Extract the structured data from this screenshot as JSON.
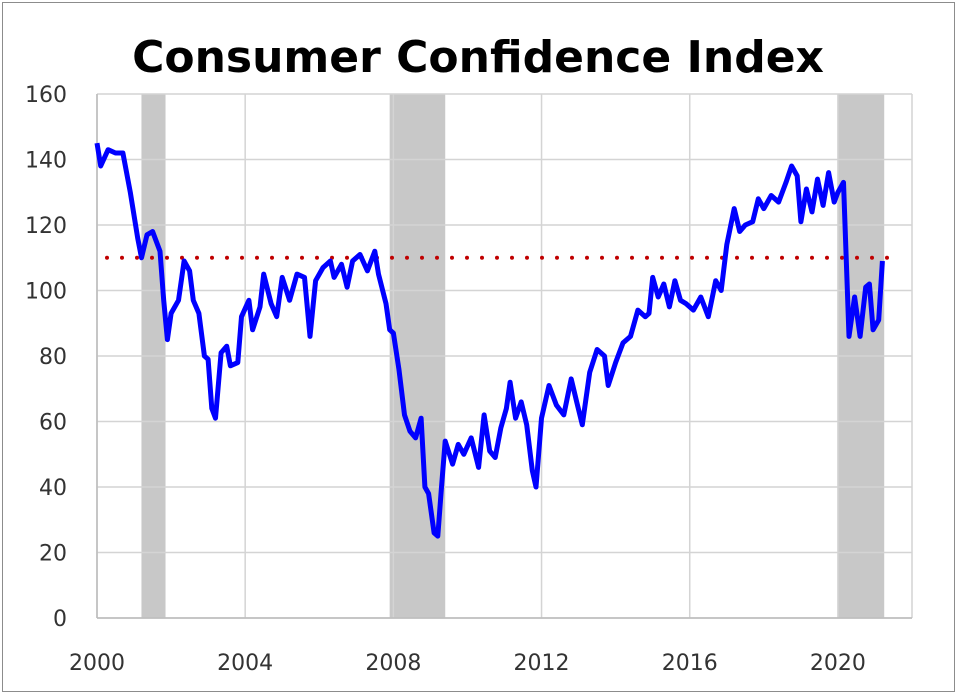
{
  "chart_data": {
    "type": "line",
    "title": "Consumer Confidence Index",
    "xlabel": "",
    "ylabel": "",
    "xlim": [
      2000,
      2022
    ],
    "ylim": [
      0,
      160
    ],
    "x_ticks": [
      2000,
      2004,
      2008,
      2012,
      2016,
      2020
    ],
    "y_ticks": [
      0,
      20,
      40,
      60,
      80,
      100,
      120,
      140,
      160
    ],
    "grid": true,
    "reference_line": {
      "value": 110,
      "style": "dotted",
      "color": "#c00000"
    },
    "recessions": [
      [
        2001.2,
        2001.85
      ],
      [
        2007.9,
        2009.4
      ],
      [
        2020.0,
        2021.25
      ]
    ],
    "series": [
      {
        "name": "Consumer Confidence Index",
        "color": "#0000ff",
        "points": [
          [
            2000.0,
            145
          ],
          [
            2000.1,
            138
          ],
          [
            2000.3,
            143
          ],
          [
            2000.5,
            142
          ],
          [
            2000.7,
            142
          ],
          [
            2000.9,
            130
          ],
          [
            2001.1,
            116
          ],
          [
            2001.2,
            110
          ],
          [
            2001.35,
            117
          ],
          [
            2001.5,
            118
          ],
          [
            2001.7,
            112
          ],
          [
            2001.8,
            97
          ],
          [
            2001.9,
            85
          ],
          [
            2002.0,
            93
          ],
          [
            2002.2,
            97
          ],
          [
            2002.35,
            109
          ],
          [
            2002.5,
            106
          ],
          [
            2002.6,
            97
          ],
          [
            2002.75,
            93
          ],
          [
            2002.9,
            80
          ],
          [
            2003.0,
            79
          ],
          [
            2003.1,
            64
          ],
          [
            2003.2,
            61
          ],
          [
            2003.35,
            81
          ],
          [
            2003.5,
            83
          ],
          [
            2003.6,
            77
          ],
          [
            2003.8,
            78
          ],
          [
            2003.9,
            92
          ],
          [
            2004.1,
            97
          ],
          [
            2004.2,
            88
          ],
          [
            2004.4,
            95
          ],
          [
            2004.5,
            105
          ],
          [
            2004.7,
            96
          ],
          [
            2004.85,
            92
          ],
          [
            2005.0,
            104
          ],
          [
            2005.2,
            97
          ],
          [
            2005.4,
            105
          ],
          [
            2005.6,
            104
          ],
          [
            2005.75,
            86
          ],
          [
            2005.9,
            103
          ],
          [
            2006.1,
            107
          ],
          [
            2006.3,
            109
          ],
          [
            2006.4,
            104
          ],
          [
            2006.6,
            108
          ],
          [
            2006.75,
            101
          ],
          [
            2006.9,
            109
          ],
          [
            2007.1,
            111
          ],
          [
            2007.3,
            106
          ],
          [
            2007.5,
            112
          ],
          [
            2007.6,
            105
          ],
          [
            2007.8,
            96
          ],
          [
            2007.9,
            88
          ],
          [
            2008.0,
            87
          ],
          [
            2008.15,
            76
          ],
          [
            2008.3,
            62
          ],
          [
            2008.45,
            57
          ],
          [
            2008.6,
            55
          ],
          [
            2008.75,
            61
          ],
          [
            2008.85,
            40
          ],
          [
            2008.95,
            38
          ],
          [
            2009.1,
            26
          ],
          [
            2009.2,
            25
          ],
          [
            2009.3,
            40
          ],
          [
            2009.4,
            54
          ],
          [
            2009.6,
            47
          ],
          [
            2009.75,
            53
          ],
          [
            2009.9,
            50
          ],
          [
            2010.1,
            55
          ],
          [
            2010.3,
            46
          ],
          [
            2010.45,
            62
          ],
          [
            2010.6,
            51
          ],
          [
            2010.75,
            49
          ],
          [
            2010.9,
            58
          ],
          [
            2011.05,
            64
          ],
          [
            2011.15,
            72
          ],
          [
            2011.3,
            61
          ],
          [
            2011.45,
            66
          ],
          [
            2011.6,
            59
          ],
          [
            2011.75,
            45
          ],
          [
            2011.85,
            40
          ],
          [
            2012.0,
            61
          ],
          [
            2012.2,
            71
          ],
          [
            2012.4,
            65
          ],
          [
            2012.6,
            62
          ],
          [
            2012.8,
            73
          ],
          [
            2012.95,
            66
          ],
          [
            2013.1,
            59
          ],
          [
            2013.3,
            75
          ],
          [
            2013.5,
            82
          ],
          [
            2013.7,
            80
          ],
          [
            2013.8,
            71
          ],
          [
            2014.0,
            78
          ],
          [
            2014.2,
            84
          ],
          [
            2014.4,
            86
          ],
          [
            2014.6,
            94
          ],
          [
            2014.8,
            92
          ],
          [
            2014.9,
            93
          ],
          [
            2015.0,
            104
          ],
          [
            2015.15,
            98
          ],
          [
            2015.3,
            102
          ],
          [
            2015.45,
            95
          ],
          [
            2015.6,
            103
          ],
          [
            2015.75,
            97
          ],
          [
            2015.9,
            96
          ],
          [
            2016.1,
            94
          ],
          [
            2016.3,
            98
          ],
          [
            2016.5,
            92
          ],
          [
            2016.7,
            103
          ],
          [
            2016.85,
            100
          ],
          [
            2017.0,
            114
          ],
          [
            2017.2,
            125
          ],
          [
            2017.35,
            118
          ],
          [
            2017.5,
            120
          ],
          [
            2017.7,
            121
          ],
          [
            2017.85,
            128
          ],
          [
            2018.0,
            125
          ],
          [
            2018.2,
            129
          ],
          [
            2018.4,
            127
          ],
          [
            2018.6,
            133
          ],
          [
            2018.75,
            138
          ],
          [
            2018.9,
            135
          ],
          [
            2019.0,
            121
          ],
          [
            2019.15,
            131
          ],
          [
            2019.3,
            124
          ],
          [
            2019.45,
            134
          ],
          [
            2019.6,
            126
          ],
          [
            2019.75,
            136
          ],
          [
            2019.9,
            127
          ],
          [
            2020.0,
            130
          ],
          [
            2020.15,
            133
          ],
          [
            2020.3,
            86
          ],
          [
            2020.45,
            98
          ],
          [
            2020.6,
            86
          ],
          [
            2020.75,
            101
          ],
          [
            2020.85,
            102
          ],
          [
            2020.95,
            88
          ],
          [
            2021.1,
            91
          ],
          [
            2021.2,
            109
          ]
        ]
      }
    ]
  }
}
